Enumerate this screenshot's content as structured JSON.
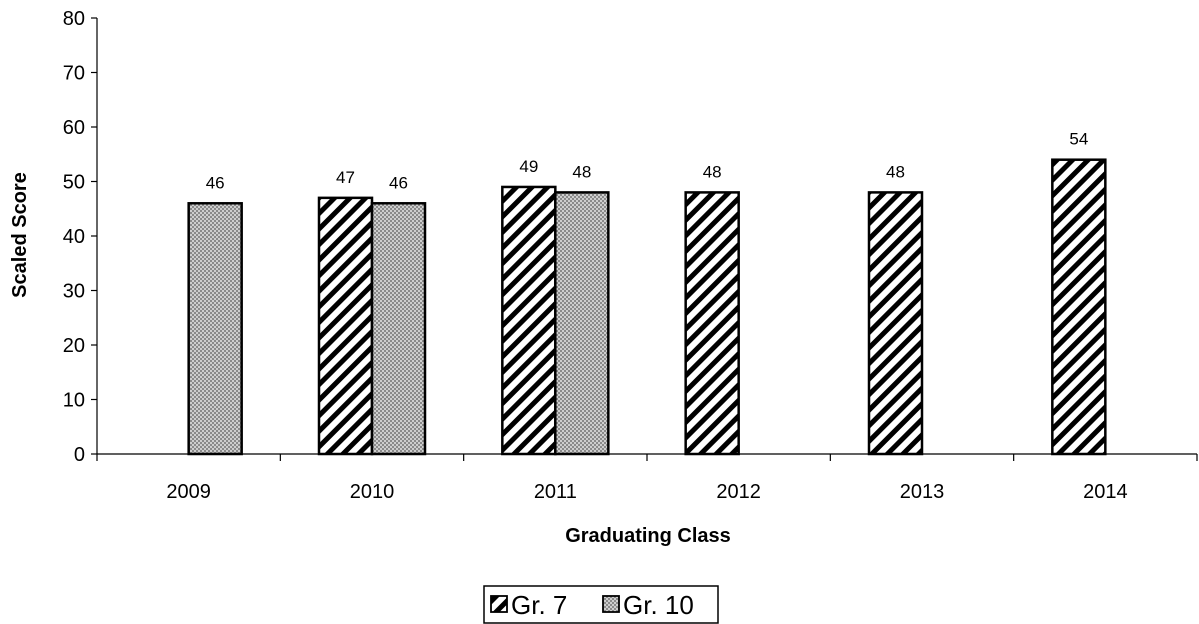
{
  "chart_data": {
    "type": "bar",
    "categories": [
      "2009",
      "2010",
      "2011",
      "2012",
      "2013",
      "2014"
    ],
    "series": [
      {
        "name": "Gr. 7",
        "values": [
          null,
          47,
          49,
          48,
          48,
          54
        ],
        "pattern": "diagonal-hatch"
      },
      {
        "name": "Gr. 10",
        "values": [
          46,
          46,
          48,
          null,
          null,
          null
        ],
        "pattern": "dotted-grey"
      }
    ],
    "data_labels": true,
    "title": "",
    "xlabel": "Graduating Class",
    "ylabel": "Scaled Score",
    "ylim": [
      0,
      80
    ],
    "yticks": [
      0,
      10,
      20,
      30,
      40,
      50,
      60,
      70,
      80
    ],
    "grid": false,
    "legend_position": "bottom"
  },
  "colors": {
    "bar_outline": "#000000",
    "hatch_line": "#000000",
    "dot_fill": "#888888",
    "background": "#ffffff"
  }
}
